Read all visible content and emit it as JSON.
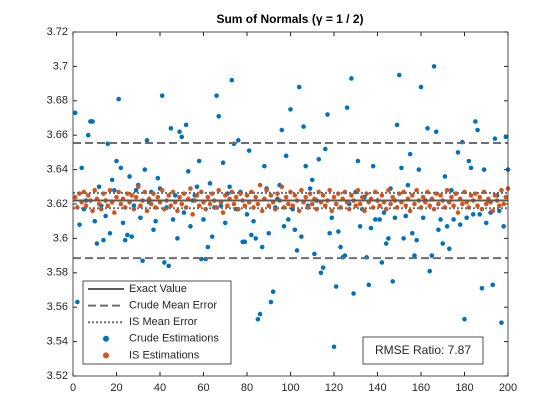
{
  "chart_data": {
    "type": "scatter",
    "title": "Sum of Normals (γ = 1 / 2)",
    "xlim": [
      0,
      200
    ],
    "xticks": [
      0,
      20,
      40,
      60,
      80,
      100,
      120,
      140,
      160,
      180,
      200
    ],
    "ylim": [
      3.52,
      3.72
    ],
    "yticks": [
      3.52,
      3.54,
      3.56,
      3.58,
      3.6,
      3.62,
      3.64,
      3.66,
      3.68,
      3.7,
      3.72
    ],
    "annotation": "RMSE Ratio: 7.87",
    "lines": [
      {
        "name": "Exact Value",
        "color": "#5a5a5a",
        "style": "solid",
        "values": [
          3.622
        ]
      },
      {
        "name": "Crude Mean Error",
        "color": "#6e6e6e",
        "style": "dashed",
        "values": [
          3.6555,
          3.5885
        ]
      },
      {
        "name": "IS Mean Error",
        "color": "#6e6e6e",
        "style": "dotted",
        "values": [
          3.6265,
          3.6175
        ]
      }
    ],
    "x": [
      1,
      2,
      3,
      4,
      5,
      6,
      7,
      8,
      9,
      10,
      11,
      12,
      13,
      14,
      15,
      16,
      17,
      18,
      19,
      20,
      21,
      22,
      23,
      24,
      25,
      26,
      27,
      28,
      29,
      30,
      31,
      32,
      33,
      34,
      35,
      36,
      37,
      38,
      39,
      40,
      41,
      42,
      43,
      44,
      45,
      46,
      47,
      48,
      49,
      50,
      51,
      52,
      53,
      54,
      55,
      56,
      57,
      58,
      59,
      60,
      61,
      62,
      63,
      64,
      65,
      66,
      67,
      68,
      69,
      70,
      71,
      72,
      73,
      74,
      75,
      76,
      77,
      78,
      79,
      80,
      81,
      82,
      83,
      84,
      85,
      86,
      87,
      88,
      89,
      90,
      91,
      92,
      93,
      94,
      95,
      96,
      97,
      98,
      99,
      100,
      101,
      102,
      103,
      104,
      105,
      106,
      107,
      108,
      109,
      110,
      111,
      112,
      113,
      114,
      115,
      116,
      117,
      118,
      119,
      120,
      121,
      122,
      123,
      124,
      125,
      126,
      127,
      128,
      129,
      130,
      131,
      132,
      133,
      134,
      135,
      136,
      137,
      138,
      139,
      140,
      141,
      142,
      143,
      144,
      145,
      146,
      147,
      148,
      149,
      150,
      151,
      152,
      153,
      154,
      155,
      156,
      157,
      158,
      159,
      160,
      161,
      162,
      163,
      164,
      165,
      166,
      167,
      168,
      169,
      170,
      171,
      172,
      173,
      174,
      175,
      176,
      177,
      178,
      179,
      180,
      181,
      182,
      183,
      184,
      185,
      186,
      187,
      188,
      189,
      190,
      191,
      192,
      193,
      194,
      195,
      196,
      197,
      198,
      199,
      200
    ],
    "series": [
      {
        "name": "Crude Estimations",
        "color": "#0072BD",
        "values": [
          3.673,
          3.563,
          3.608,
          3.641,
          3.617,
          3.622,
          3.66,
          3.668,
          3.668,
          3.61,
          3.597,
          3.63,
          3.619,
          3.599,
          3.613,
          3.655,
          3.603,
          3.634,
          3.628,
          3.645,
          3.681,
          3.641,
          3.609,
          3.599,
          3.602,
          3.636,
          3.601,
          3.619,
          3.628,
          3.631,
          3.612,
          3.587,
          3.64,
          3.657,
          3.621,
          3.627,
          3.605,
          3.61,
          3.635,
          3.629,
          3.683,
          3.586,
          3.618,
          3.584,
          3.664,
          3.611,
          3.625,
          3.6,
          3.662,
          3.659,
          3.615,
          3.666,
          3.639,
          3.607,
          3.622,
          3.625,
          3.63,
          3.645,
          3.588,
          3.611,
          3.588,
          3.595,
          3.632,
          3.601,
          3.618,
          3.683,
          3.671,
          3.619,
          3.644,
          3.609,
          3.626,
          3.63,
          3.692,
          3.655,
          3.617,
          3.657,
          3.627,
          3.598,
          3.598,
          3.614,
          3.651,
          3.602,
          3.61,
          3.6,
          3.553,
          3.556,
          3.595,
          3.642,
          3.629,
          3.603,
          3.563,
          3.569,
          3.618,
          3.623,
          3.631,
          3.663,
          3.607,
          3.648,
          3.611,
          3.675,
          3.617,
          3.605,
          3.593,
          3.688,
          3.601,
          3.665,
          3.642,
          3.619,
          3.629,
          3.634,
          3.591,
          3.622,
          3.646,
          3.58,
          3.583,
          3.652,
          3.672,
          3.603,
          3.612,
          3.537,
          3.572,
          3.604,
          3.595,
          3.589,
          3.59,
          3.676,
          3.62,
          3.693,
          3.568,
          3.627,
          3.645,
          3.607,
          3.617,
          3.624,
          3.589,
          3.573,
          3.606,
          3.642,
          3.611,
          3.622,
          3.611,
          3.586,
          3.615,
          3.597,
          3.6,
          3.629,
          3.575,
          3.612,
          3.666,
          3.695,
          3.641,
          3.6,
          3.613,
          3.631,
          3.649,
          3.603,
          3.59,
          3.599,
          3.64,
          3.688,
          3.612,
          3.622,
          3.664,
          3.581,
          3.59,
          3.7,
          3.662,
          3.605,
          3.611,
          3.597,
          3.636,
          3.607,
          3.594,
          3.628,
          3.611,
          3.626,
          3.65,
          3.608,
          3.656,
          3.553,
          3.612,
          3.645,
          3.641,
          3.614,
          3.668,
          3.663,
          3.614,
          3.571,
          3.64,
          3.609,
          3.622,
          3.615,
          3.573,
          3.658,
          3.625,
          3.616,
          3.551,
          3.607,
          3.659,
          3.64
        ]
      },
      {
        "name": "IS Estimations",
        "color": "#D95319",
        "values": [
          3.624,
          3.618,
          3.626,
          3.621,
          3.627,
          3.619,
          3.625,
          3.622,
          3.616,
          3.628,
          3.623,
          3.62,
          3.617,
          3.626,
          3.622,
          3.619,
          3.628,
          3.621,
          3.615,
          3.624,
          3.627,
          3.62,
          3.623,
          3.618,
          3.626,
          3.621,
          3.625,
          3.617,
          3.624,
          3.63,
          3.619,
          3.622,
          3.627,
          3.616,
          3.623,
          3.62,
          3.626,
          3.618,
          3.624,
          3.621,
          3.628,
          3.617,
          3.622,
          3.625,
          3.619,
          3.627,
          3.621,
          3.616,
          3.624,
          3.62,
          3.626,
          3.618,
          3.623,
          3.629,
          3.614,
          3.622,
          3.625,
          3.619,
          3.627,
          3.621,
          3.617,
          3.624,
          3.62,
          3.626,
          3.622,
          3.618,
          3.628,
          3.621,
          3.615,
          3.625,
          3.619,
          3.623,
          3.627,
          3.62,
          3.624,
          3.617,
          3.626,
          3.622,
          3.619,
          3.625,
          3.621,
          3.627,
          3.618,
          3.624,
          3.62,
          3.631,
          3.616,
          3.623,
          3.628,
          3.619,
          3.625,
          3.621,
          3.617,
          3.626,
          3.622,
          3.63,
          3.618,
          3.624,
          3.62,
          3.627,
          3.619,
          3.625,
          3.622,
          3.616,
          3.628,
          3.621,
          3.624,
          3.618,
          3.626,
          3.62,
          3.623,
          3.617,
          3.627,
          3.621,
          3.625,
          3.619,
          3.622,
          3.628,
          3.616,
          3.624,
          3.62,
          3.626,
          3.618,
          3.623,
          3.627,
          3.621,
          3.617,
          3.625,
          3.622,
          3.619,
          3.628,
          3.62,
          3.624,
          3.616,
          3.626,
          3.621,
          3.623,
          3.618,
          3.627,
          3.622,
          3.619,
          3.625,
          3.621,
          3.617,
          3.628,
          3.62,
          3.624,
          3.622,
          3.618,
          3.626,
          3.621,
          3.627,
          3.619,
          3.623,
          3.616,
          3.625,
          3.62,
          3.628,
          3.622,
          3.618,
          3.624,
          3.621,
          3.627,
          3.619,
          3.623,
          3.617,
          3.626,
          3.62,
          3.625,
          3.622,
          3.618,
          3.628,
          3.621,
          3.624,
          3.619,
          3.626,
          3.615,
          3.623,
          3.62,
          3.627,
          3.621,
          3.618,
          3.625,
          3.622,
          3.626,
          3.619,
          3.624,
          3.617,
          3.627,
          3.62,
          3.623,
          3.621,
          3.616,
          3.625,
          3.622,
          3.619,
          3.628,
          3.62,
          3.624,
          3.629
        ]
      }
    ]
  }
}
